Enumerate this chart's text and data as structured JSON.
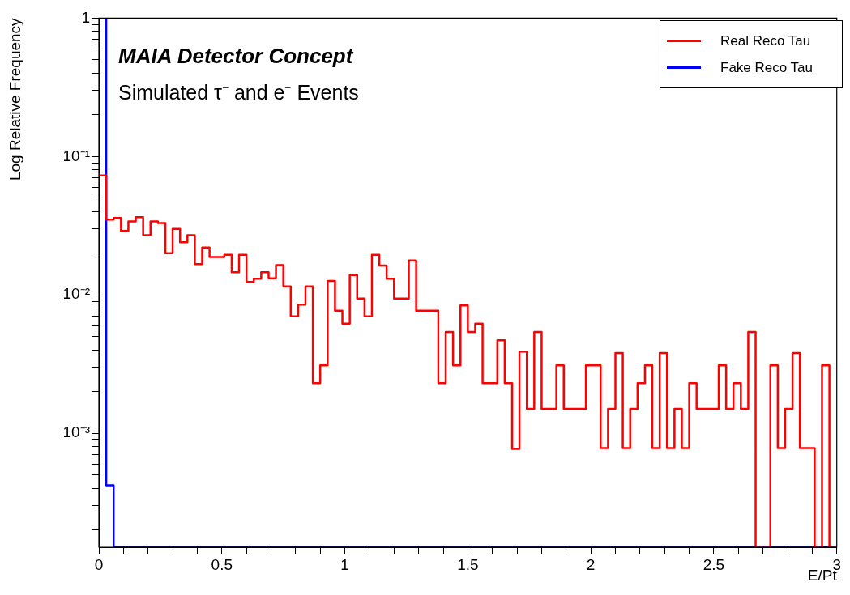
{
  "chart_data": {
    "type": "histogram",
    "title": "MAIA Detector Concept",
    "subtitle": "Simulated τ⁻ and e⁻ Events",
    "xlabel": "E/Pt",
    "ylabel": "Log Relative Frequency",
    "bins": [
      0,
      0.03,
      0.06,
      0.09,
      0.12,
      0.15,
      0.18,
      0.21,
      0.24,
      0.27,
      0.3,
      0.33,
      0.36,
      0.39,
      0.42,
      0.45,
      0.48,
      0.51,
      0.54,
      0.57,
      0.6,
      0.63,
      0.66,
      0.69,
      0.72,
      0.75,
      0.78,
      0.81,
      0.84,
      0.87,
      0.9,
      0.93,
      0.96,
      0.99,
      1.02,
      1.05,
      1.08,
      1.11,
      1.14,
      1.17,
      1.2,
      1.23,
      1.26,
      1.29,
      1.32,
      1.35,
      1.38,
      1.41,
      1.44,
      1.47,
      1.5,
      1.53,
      1.56,
      1.59,
      1.62,
      1.65,
      1.68,
      1.71,
      1.74,
      1.77,
      1.8,
      1.83,
      1.86,
      1.89,
      1.92,
      1.95,
      1.98,
      2.01,
      2.04,
      2.07,
      2.1,
      2.13,
      2.16,
      2.19,
      2.22,
      2.25,
      2.28,
      2.31,
      2.34,
      2.37,
      2.4,
      2.43,
      2.46,
      2.49,
      2.52,
      2.55,
      2.58,
      2.61,
      2.64,
      2.67,
      2.7,
      2.73,
      2.76,
      2.79,
      2.82,
      2.85,
      2.88,
      2.91,
      2.94,
      2.97,
      3
    ],
    "series": [
      {
        "name": "Real Reco Tau",
        "color": "#ff0000",
        "values": [
          0.073,
          0.035,
          0.036,
          0.029,
          0.034,
          0.0365,
          0.027,
          0.034,
          0.033,
          0.02,
          0.03,
          0.024,
          0.027,
          0.0167,
          0.022,
          0.0188,
          0.0188,
          0.0195,
          0.0146,
          0.0195,
          0.0124,
          0.0131,
          0.0146,
          0.0132,
          0.0164,
          0.0115,
          0.007,
          0.0085,
          0.0115,
          0.0023,
          0.0031,
          0.0126,
          0.0077,
          0.0062,
          0.0139,
          0.0094,
          0.007,
          0.0195,
          0.0163,
          0.0131,
          0.0094,
          0.0094,
          0.0177,
          0.0077,
          0.0077,
          0.0077,
          0.0023,
          0.0054,
          0.0031,
          0.0084,
          0.0054,
          0.0062,
          0.0023,
          0.0023,
          0.0047,
          0.0023,
          0.00077,
          0.0039,
          0.0015,
          0.0054,
          0.0015,
          0.0015,
          0.0031,
          0.0015,
          0.0015,
          0.0015,
          0.0031,
          0.0031,
          0.00078,
          0.0015,
          0.0038,
          0.00078,
          0.0015,
          0.0023,
          0.0031,
          0.00078,
          0.0038,
          0.00078,
          0.0015,
          0.00078,
          0.0023,
          0.0015,
          0.0015,
          0.0015,
          0.0031,
          0.0015,
          0.0023,
          0.0015,
          0.0054,
          null,
          null,
          0.0031,
          0.00078,
          0.0015,
          0.0038,
          0.00078,
          0.00078,
          null,
          0.0031,
          null
        ]
      },
      {
        "name": "Fake Reco Tau",
        "color": "#0000ff",
        "values": [
          1,
          0.00042,
          null,
          null,
          null,
          null,
          null,
          null,
          null,
          null,
          null,
          null,
          null,
          null,
          null,
          null,
          null,
          null,
          null,
          null,
          null,
          null,
          null,
          null,
          null,
          null,
          null,
          null,
          null,
          null,
          null,
          null,
          null,
          null,
          null,
          null,
          null,
          null,
          null,
          null,
          null,
          null,
          null,
          null,
          null,
          null,
          null,
          null,
          null,
          null,
          null,
          null,
          null,
          null,
          null,
          null,
          null,
          null,
          null,
          null,
          null,
          null,
          null,
          null,
          null,
          null,
          null,
          null,
          null,
          null,
          null,
          null,
          null,
          null,
          null,
          null,
          null,
          null,
          null,
          null,
          null,
          null,
          null,
          null,
          null,
          null,
          null,
          null,
          null,
          null,
          null,
          null,
          null,
          null,
          null,
          null,
          null,
          null,
          null,
          null
        ]
      }
    ],
    "xlim": [
      0,
      3
    ],
    "xticks": [
      0,
      {
        "value": 0.1,
        "label": null
      },
      {
        "value": 0.2,
        "label": null
      },
      {
        "value": 0.3,
        "label": null
      },
      {
        "value": 0.4,
        "label": null
      },
      0.5,
      {
        "value": 0.6,
        "label": null
      },
      {
        "value": 0.7,
        "label": null
      },
      {
        "value": 0.8,
        "label": null
      },
      {
        "value": 0.9,
        "label": null
      },
      1,
      {
        "value": 1.1,
        "label": null
      },
      {
        "value": 1.2,
        "label": null
      },
      {
        "value": 1.3,
        "label": null
      },
      {
        "value": 1.4,
        "label": null
      },
      1.5,
      {
        "value": 1.6,
        "label": null
      },
      {
        "value": 1.7,
        "label": null
      },
      {
        "value": 1.8,
        "label": null
      },
      {
        "value": 1.9,
        "label": null
      },
      2,
      {
        "value": 2.1,
        "label": null
      },
      {
        "value": 2.2,
        "label": null
      },
      {
        "value": 2.3,
        "label": null
      },
      {
        "value": 2.4,
        "label": null
      },
      2.5,
      {
        "value": 2.6,
        "label": null
      },
      {
        "value": 2.7,
        "label": null
      },
      {
        "value": 2.8,
        "label": null
      },
      {
        "value": 2.9,
        "label": null
      },
      3
    ],
    "ylim": [
      0.00015,
      1
    ],
    "yticks": [
      {
        "value": 0.0002,
        "label": null
      },
      {
        "value": 0.0003,
        "label": null
      },
      {
        "value": 0.0004,
        "label": null
      },
      {
        "value": 0.0005,
        "label": null
      },
      {
        "value": 0.0006,
        "label": null
      },
      {
        "value": 0.0007,
        "label": null
      },
      {
        "value": 0.0008,
        "label": null
      },
      {
        "value": 0.0009,
        "label": null
      },
      {
        "value": 0.001,
        "label": "10⁻³"
      },
      {
        "value": 0.002,
        "label": null
      },
      {
        "value": 0.003,
        "label": null
      },
      {
        "value": 0.004,
        "label": null
      },
      {
        "value": 0.005,
        "label": null
      },
      {
        "value": 0.006,
        "label": null
      },
      {
        "value": 0.007,
        "label": null
      },
      {
        "value": 0.008,
        "label": null
      },
      {
        "value": 0.009,
        "label": null
      },
      {
        "value": 0.01,
        "label": "10⁻²"
      },
      {
        "value": 0.02,
        "label": null
      },
      {
        "value": 0.03,
        "label": null
      },
      {
        "value": 0.04,
        "label": null
      },
      {
        "value": 0.05,
        "label": null
      },
      {
        "value": 0.06,
        "label": null
      },
      {
        "value": 0.07,
        "label": null
      },
      {
        "value": 0.08,
        "label": null
      },
      {
        "value": 0.09,
        "label": null
      },
      {
        "value": 0.1,
        "label": "10⁻¹"
      },
      {
        "value": 0.2,
        "label": null
      },
      {
        "value": 0.3,
        "label": null
      },
      {
        "value": 0.4,
        "label": null
      },
      {
        "value": 0.5,
        "label": null
      },
      {
        "value": 0.6,
        "label": null
      },
      {
        "value": 0.7,
        "label": null
      },
      {
        "value": 0.8,
        "label": null
      },
      {
        "value": 0.9,
        "label": null
      },
      1
    ],
    "log": "y",
    "grid": false,
    "legend": "top right"
  }
}
